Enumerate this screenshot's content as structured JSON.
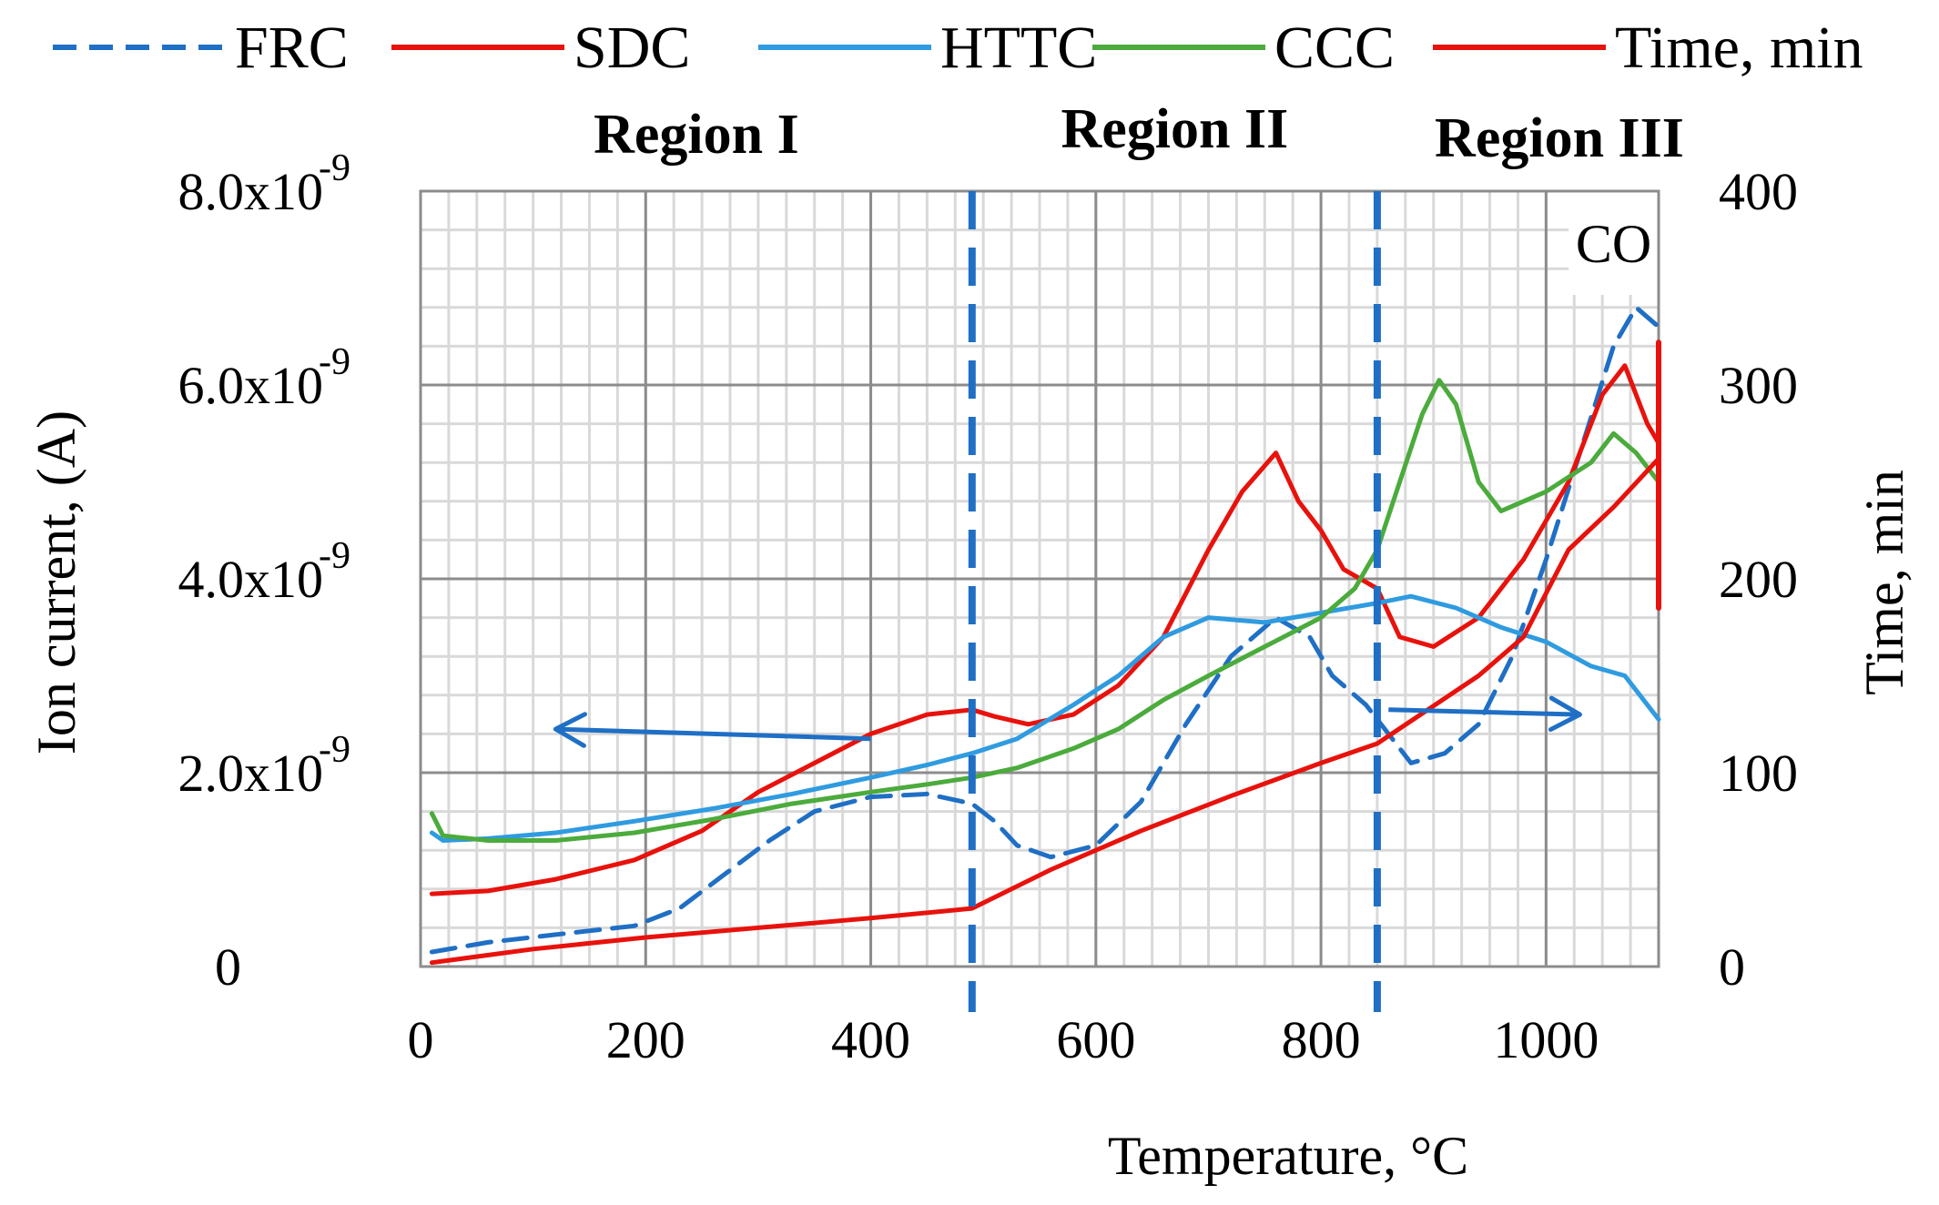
{
  "chart_data": {
    "type": "line",
    "xlabel": "Temperature, °C",
    "ylabel": "Ion current, (A)",
    "y2label": "Time, min",
    "xlim": [
      0,
      1100
    ],
    "ylim": [
      0,
      8e-09
    ],
    "y2lim": [
      0,
      400
    ],
    "x_ticks": [
      "0",
      "200",
      "400",
      "600",
      "800",
      "1000"
    ],
    "y_ticks": [
      {
        "value": 0,
        "base": "0",
        "exp": ""
      },
      {
        "value": 2e-09,
        "base": "2.0x10",
        "exp": "-9"
      },
      {
        "value": 4e-09,
        "base": "4.0x10",
        "exp": "-9"
      },
      {
        "value": 6e-09,
        "base": "6.0x10",
        "exp": "-9"
      },
      {
        "value": 8e-09,
        "base": "8.0x10",
        "exp": "-9"
      }
    ],
    "y2_ticks": [
      "0",
      "100",
      "200",
      "300",
      "400"
    ],
    "regions": [
      {
        "label": "Region I",
        "x_start": 0,
        "x_end": 490
      },
      {
        "label": "Region II",
        "x_start": 490,
        "x_end": 850
      },
      {
        "label": "Region III",
        "x_start": 850,
        "x_end": 1100
      }
    ],
    "region_boundaries": [
      490,
      850
    ],
    "annotation": "CO",
    "legend": [
      "FRC",
      "SDC",
      "HTTC",
      "CCC",
      "Time, min"
    ],
    "series": [
      {
        "name": "FRC",
        "color": "#1f6fc5",
        "dash": true,
        "axis": "left",
        "points": [
          [
            10,
            1.5e-10
          ],
          [
            60,
            2.5e-10
          ],
          [
            120,
            3.3e-10
          ],
          [
            190,
            4.2e-10
          ],
          [
            230,
            6e-10
          ],
          [
            270,
            9.5e-10
          ],
          [
            310,
            1.3e-09
          ],
          [
            350,
            1.6e-09
          ],
          [
            400,
            1.75e-09
          ],
          [
            450,
            1.78e-09
          ],
          [
            490,
            1.68e-09
          ],
          [
            510,
            1.5e-09
          ],
          [
            530,
            1.25e-09
          ],
          [
            560,
            1.13e-09
          ],
          [
            600,
            1.25e-09
          ],
          [
            640,
            1.7e-09
          ],
          [
            680,
            2.5e-09
          ],
          [
            720,
            3.2e-09
          ],
          [
            760,
            3.6e-09
          ],
          [
            790,
            3.4e-09
          ],
          [
            810,
            3e-09
          ],
          [
            840,
            2.7e-09
          ],
          [
            860,
            2.4e-09
          ],
          [
            880,
            2.1e-09
          ],
          [
            910,
            2.2e-09
          ],
          [
            940,
            2.5e-09
          ],
          [
            970,
            3.2e-09
          ],
          [
            1000,
            4.2e-09
          ],
          [
            1030,
            5.3e-09
          ],
          [
            1060,
            6.4e-09
          ],
          [
            1080,
            6.8e-09
          ],
          [
            1100,
            6.6e-09
          ]
        ]
      },
      {
        "name": "SDC",
        "color": "#e8120c",
        "dash": false,
        "axis": "left",
        "points": [
          [
            10,
            7.5e-10
          ],
          [
            60,
            7.8e-10
          ],
          [
            120,
            9e-10
          ],
          [
            190,
            1.1e-09
          ],
          [
            250,
            1.4e-09
          ],
          [
            300,
            1.8e-09
          ],
          [
            350,
            2.1e-09
          ],
          [
            400,
            2.4e-09
          ],
          [
            450,
            2.6e-09
          ],
          [
            490,
            2.65e-09
          ],
          [
            510,
            2.58e-09
          ],
          [
            540,
            2.5e-09
          ],
          [
            580,
            2.6e-09
          ],
          [
            620,
            2.9e-09
          ],
          [
            660,
            3.4e-09
          ],
          [
            700,
            4.3e-09
          ],
          [
            730,
            4.9e-09
          ],
          [
            760,
            5.3e-09
          ],
          [
            780,
            4.8e-09
          ],
          [
            800,
            4.5e-09
          ],
          [
            820,
            4.1e-09
          ],
          [
            850,
            3.9e-09
          ],
          [
            870,
            3.4e-09
          ],
          [
            900,
            3.3e-09
          ],
          [
            940,
            3.6e-09
          ],
          [
            980,
            4.2e-09
          ],
          [
            1020,
            5e-09
          ],
          [
            1050,
            5.9e-09
          ],
          [
            1070,
            6.2e-09
          ],
          [
            1090,
            5.6e-09
          ],
          [
            1100,
            5.4e-09
          ]
        ]
      },
      {
        "name": "HTTC",
        "color": "#2f9be0",
        "dash": false,
        "axis": "left",
        "points": [
          [
            10,
            1.38e-09
          ],
          [
            20,
            1.3e-09
          ],
          [
            60,
            1.32e-09
          ],
          [
            120,
            1.38e-09
          ],
          [
            190,
            1.5e-09
          ],
          [
            260,
            1.63e-09
          ],
          [
            330,
            1.78e-09
          ],
          [
            400,
            1.95e-09
          ],
          [
            450,
            2.08e-09
          ],
          [
            490,
            2.2e-09
          ],
          [
            530,
            2.35e-09
          ],
          [
            580,
            2.7e-09
          ],
          [
            620,
            3e-09
          ],
          [
            660,
            3.4e-09
          ],
          [
            700,
            3.6e-09
          ],
          [
            750,
            3.55e-09
          ],
          [
            800,
            3.65e-09
          ],
          [
            850,
            3.75e-09
          ],
          [
            880,
            3.82e-09
          ],
          [
            920,
            3.7e-09
          ],
          [
            960,
            3.5e-09
          ],
          [
            1000,
            3.35e-09
          ],
          [
            1040,
            3.1e-09
          ],
          [
            1070,
            3e-09
          ],
          [
            1100,
            2.55e-09
          ]
        ]
      },
      {
        "name": "CCC",
        "color": "#4bab3c",
        "dash": false,
        "axis": "left",
        "points": [
          [
            10,
            1.58e-09
          ],
          [
            20,
            1.35e-09
          ],
          [
            60,
            1.3e-09
          ],
          [
            120,
            1.3e-09
          ],
          [
            190,
            1.38e-09
          ],
          [
            260,
            1.52e-09
          ],
          [
            330,
            1.68e-09
          ],
          [
            400,
            1.8e-09
          ],
          [
            450,
            1.88e-09
          ],
          [
            490,
            1.95e-09
          ],
          [
            530,
            2.05e-09
          ],
          [
            580,
            2.25e-09
          ],
          [
            620,
            2.45e-09
          ],
          [
            660,
            2.75e-09
          ],
          [
            700,
            3e-09
          ],
          [
            750,
            3.3e-09
          ],
          [
            800,
            3.6e-09
          ],
          [
            830,
            3.9e-09
          ],
          [
            850,
            4.3e-09
          ],
          [
            870,
            5e-09
          ],
          [
            890,
            5.7e-09
          ],
          [
            905,
            6.05e-09
          ],
          [
            920,
            5.8e-09
          ],
          [
            940,
            5e-09
          ],
          [
            960,
            4.7e-09
          ],
          [
            1000,
            4.9e-09
          ],
          [
            1040,
            5.2e-09
          ],
          [
            1060,
            5.5e-09
          ],
          [
            1080,
            5.3e-09
          ],
          [
            1100,
            5e-09
          ]
        ]
      },
      {
        "name": "Time, min",
        "color": "#e8120c",
        "dash": false,
        "axis": "right",
        "points": [
          [
            10,
            2
          ],
          [
            100,
            9
          ],
          [
            200,
            15
          ],
          [
            300,
            20
          ],
          [
            400,
            25
          ],
          [
            490,
            30
          ],
          [
            560,
            50
          ],
          [
            640,
            70
          ],
          [
            720,
            88
          ],
          [
            800,
            105
          ],
          [
            850,
            115
          ],
          [
            940,
            150
          ],
          [
            980,
            170
          ],
          [
            1020,
            215
          ],
          [
            1060,
            237
          ],
          [
            1100,
            262
          ]
        ]
      },
      {
        "name": "end-marker",
        "color": "#e8120c",
        "dash": false,
        "axis": "right",
        "points": [
          [
            1100,
            322
          ],
          [
            1100,
            185
          ]
        ]
      }
    ],
    "arrows": [
      {
        "from": [
          400,
          2.35e-09
        ],
        "to": [
          120,
          2.45e-09
        ],
        "points_to": "left axis"
      },
      {
        "from": [
          860,
          2.65e-09
        ],
        "to": [
          1030,
          2.6e-09
        ],
        "points_to": "right axis"
      }
    ]
  }
}
